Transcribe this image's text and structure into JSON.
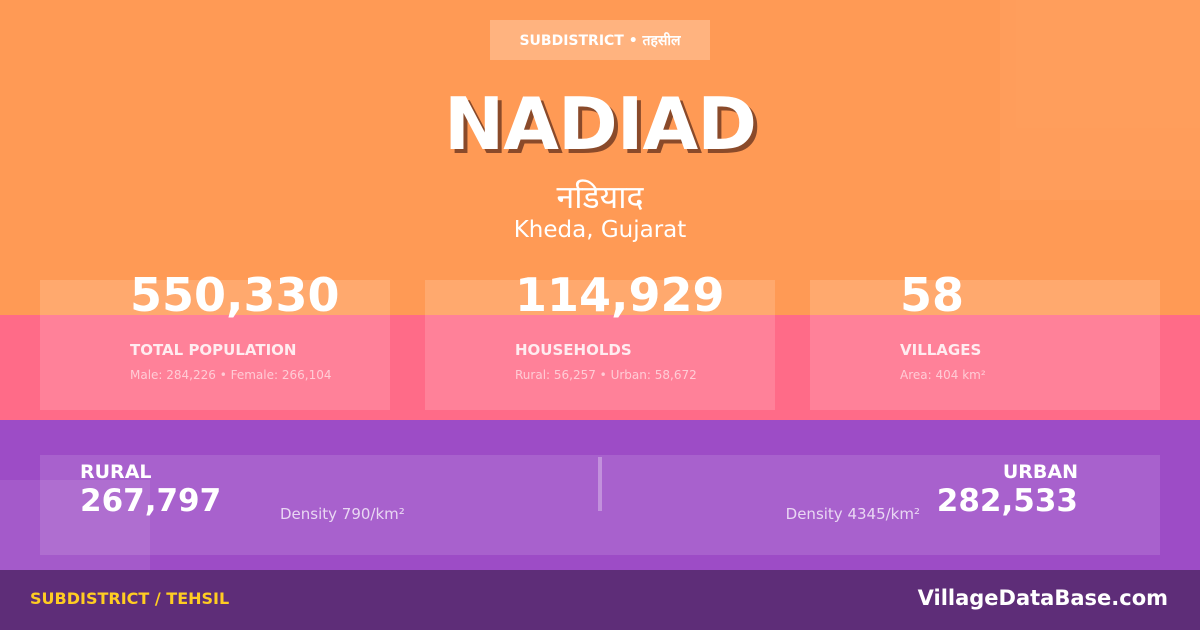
{
  "badge": "SUBDISTRICT • तहसील",
  "title": "NADIAD",
  "title_hindi": "नडियाद",
  "location": "Kheda, Gujarat",
  "stats": [
    {
      "value": "550,330",
      "label": "TOTAL POPULATION",
      "sub": "Male: 284,226 • Female: 266,104"
    },
    {
      "value": "114,929",
      "label": "HOUSEHOLDS",
      "sub": "Rural: 56,257 • Urban: 58,672"
    },
    {
      "value": "58",
      "label": "VILLAGES",
      "sub": "Area: 404 km²"
    }
  ],
  "rural": {
    "label": "RURAL",
    "value": "267,797",
    "density": "Density 790/km²"
  },
  "urban": {
    "label": "URBAN",
    "value": "282,533",
    "density": "Density 4345/km²"
  },
  "footer": {
    "left": "SUBDISTRICT / TEHSIL",
    "right": "VillageDataBase.com"
  },
  "colors": {
    "orange": "#ff9a55",
    "pink": "#ff6b88",
    "purple": "#9d4cc6",
    "footer": "#5e2d78",
    "accent": "#ffcc22"
  }
}
